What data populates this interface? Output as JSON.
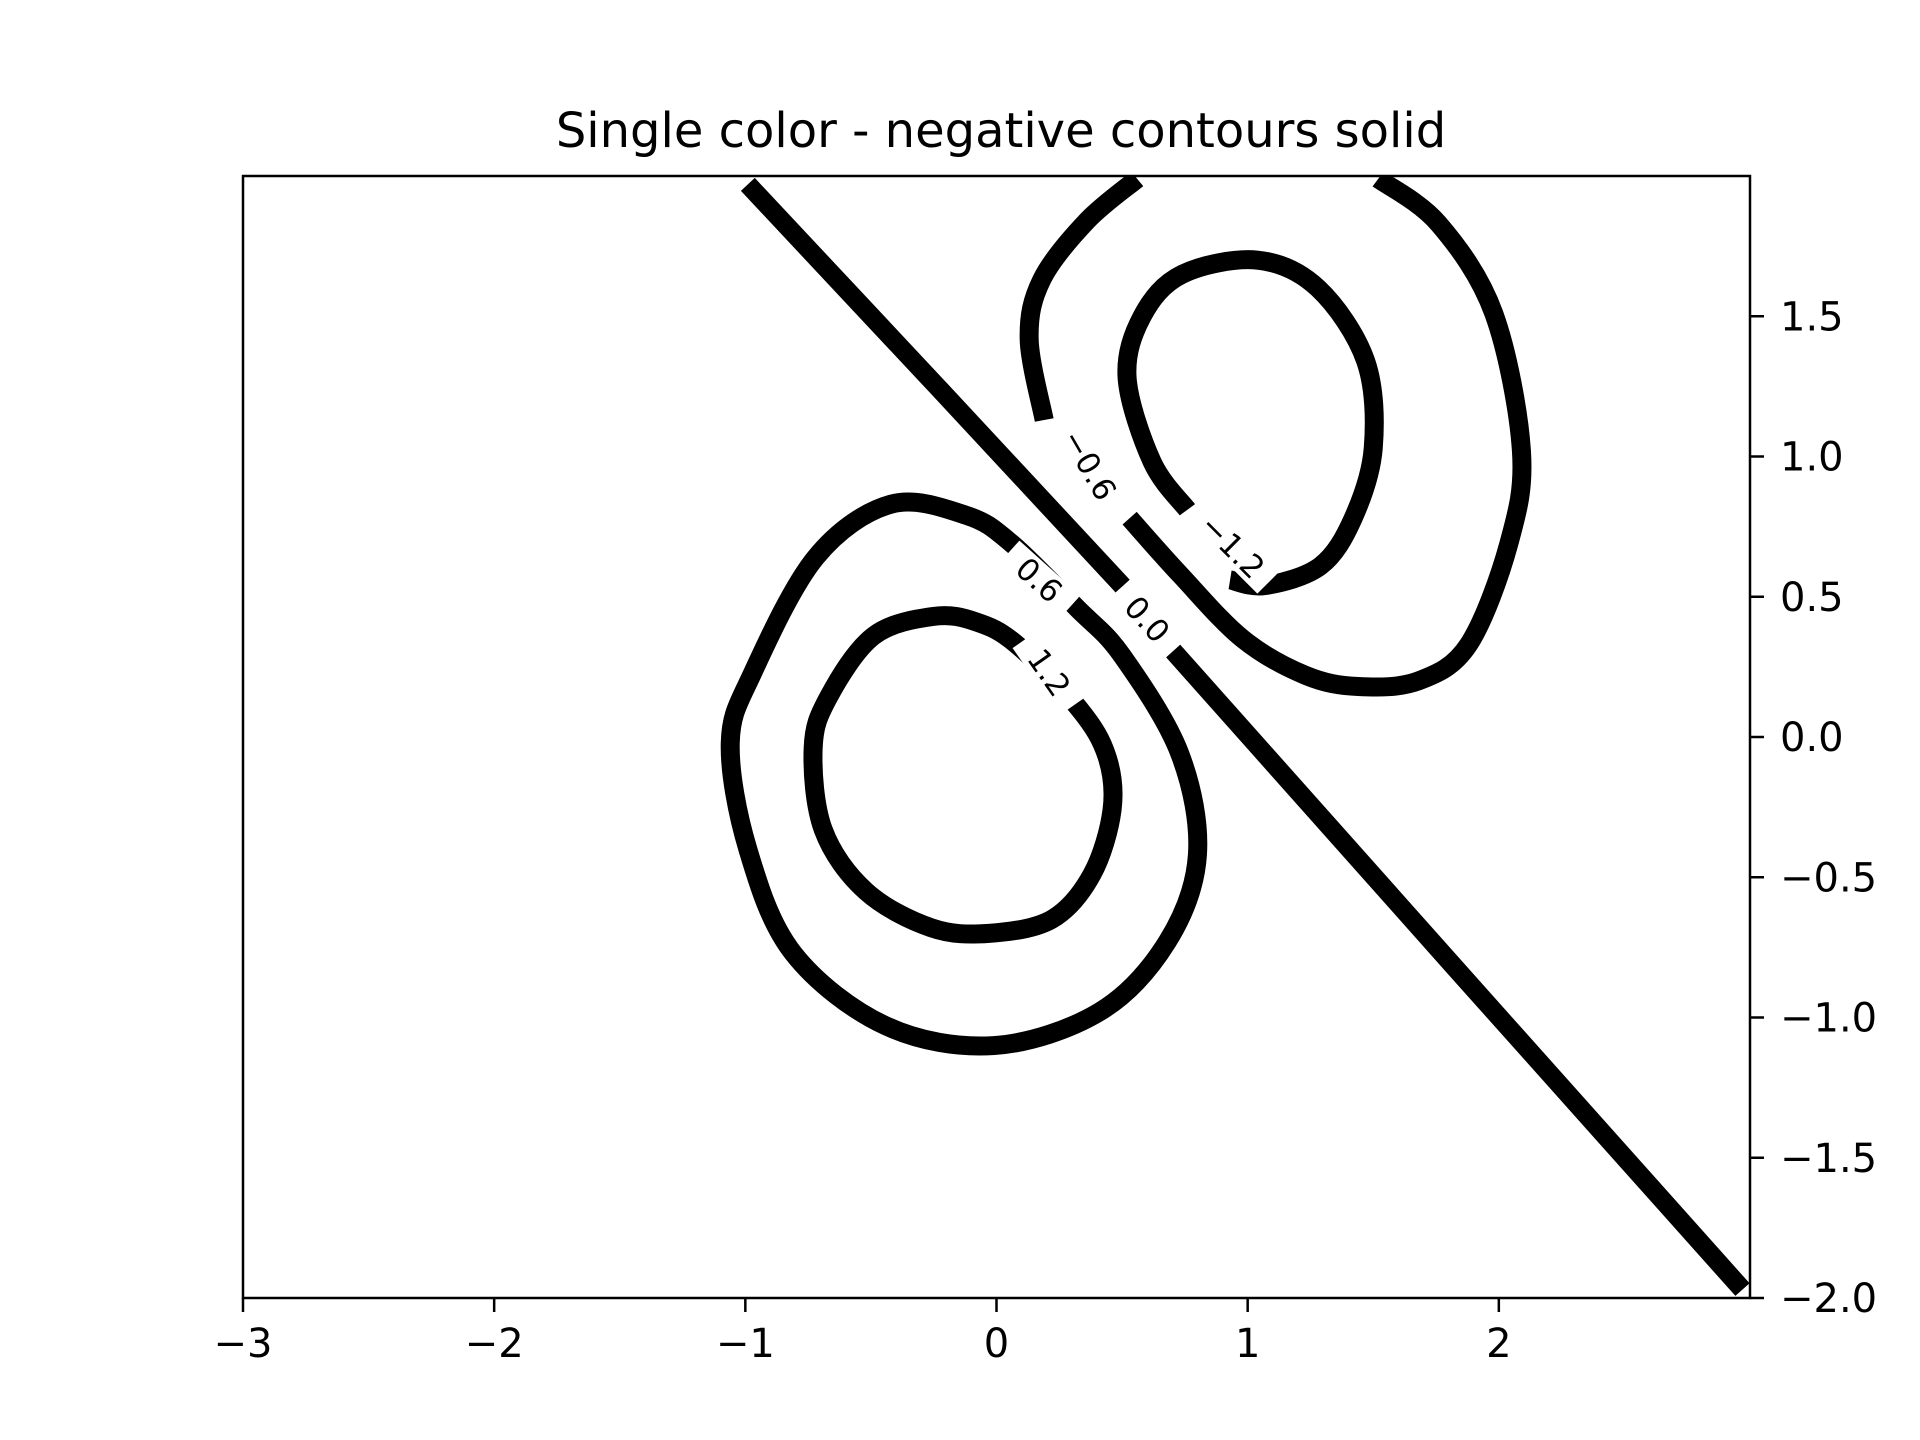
{
  "chart_data": {
    "type": "contour",
    "title": "Single color - negative contours solid",
    "xlabel": "",
    "ylabel": "",
    "xlim": [
      -3,
      3
    ],
    "ylim": [
      -2,
      2
    ],
    "xticks": [
      -3,
      -2,
      -1,
      0,
      1,
      2
    ],
    "xtick_labels": [
      "−3",
      "−2",
      "−1",
      "0",
      "1",
      "2"
    ],
    "yticks": [
      -2.0,
      -1.5,
      -1.0,
      -0.5,
      0.0,
      0.5,
      1.0,
      1.5
    ],
    "ytick_labels": [
      "−2.0",
      "−1.5",
      "−1.0",
      "−0.5",
      "0.0",
      "0.5",
      "1.0",
      "1.5"
    ],
    "y_axis_side": "right",
    "grid": false,
    "line_color": "#000000",
    "negative_linestyle": "solid",
    "levels": [
      -1.2,
      -0.6,
      0.0,
      0.6,
      1.2
    ],
    "level_labels": [
      {
        "level": -1.2,
        "text": "−1.2",
        "x": 0.94,
        "y": 0.68,
        "angle": 45
      },
      {
        "level": -0.6,
        "text": "−0.6",
        "x": 0.37,
        "y": 0.97,
        "angle": 60
      },
      {
        "level": 0.0,
        "text": "0.0",
        "x": 0.6,
        "y": 0.42,
        "angle": 48
      },
      {
        "level": 0.6,
        "text": "0.6",
        "x": 0.17,
        "y": 0.56,
        "angle": 42
      },
      {
        "level": 1.2,
        "text": "1.2",
        "x": 0.21,
        "y": 0.23,
        "angle": 55
      }
    ],
    "contours": [
      {
        "level": 0.0,
        "closed": false,
        "points": [
          [
            -0.99,
            1.97
          ],
          [
            0.49,
            0.55
          ],
          [
            0.71,
            0.3
          ],
          [
            2.97,
            -1.97
          ]
        ]
      },
      {
        "level": 0.6,
        "closed": true,
        "points": [
          [
            0.06,
            0.69
          ],
          [
            -0.12,
            0.79
          ],
          [
            -0.42,
            0.83
          ],
          [
            -0.72,
            0.64
          ],
          [
            -0.97,
            0.23
          ],
          [
            -1.06,
            -0.02
          ],
          [
            -0.99,
            -0.4
          ],
          [
            -0.81,
            -0.77
          ],
          [
            -0.44,
            -1.03
          ],
          [
            -0.01,
            -1.1
          ],
          [
            0.41,
            -0.98
          ],
          [
            0.68,
            -0.73
          ],
          [
            0.8,
            -0.42
          ],
          [
            0.73,
            -0.06
          ],
          [
            0.5,
            0.29
          ],
          [
            0.32,
            0.46
          ]
        ]
      },
      {
        "level": 1.2,
        "closed": true,
        "points": [
          [
            0.08,
            0.33
          ],
          [
            -0.08,
            0.41
          ],
          [
            -0.25,
            0.43
          ],
          [
            -0.49,
            0.36
          ],
          [
            -0.67,
            0.14
          ],
          [
            -0.73,
            -0.04
          ],
          [
            -0.69,
            -0.33
          ],
          [
            -0.52,
            -0.55
          ],
          [
            -0.26,
            -0.68
          ],
          [
            -0.03,
            -0.7
          ],
          [
            0.22,
            -0.65
          ],
          [
            0.38,
            -0.49
          ],
          [
            0.46,
            -0.26
          ],
          [
            0.44,
            -0.07
          ],
          [
            0.33,
            0.1
          ]
        ]
      },
      {
        "level": -0.6,
        "closed": false,
        "points": [
          [
            0.19,
            1.13
          ],
          [
            0.13,
            1.42
          ],
          [
            0.18,
            1.63
          ],
          [
            0.36,
            1.84
          ],
          [
            0.56,
            1.99
          ]
        ]
      },
      {
        "level": -0.6,
        "closed": false,
        "points": [
          [
            1.52,
            1.99
          ],
          [
            1.76,
            1.83
          ],
          [
            1.98,
            1.51
          ],
          [
            2.09,
            1.02
          ],
          [
            2.04,
            0.69
          ],
          [
            1.88,
            0.33
          ],
          [
            1.68,
            0.2
          ],
          [
            1.44,
            0.18
          ],
          [
            1.23,
            0.22
          ],
          [
            0.98,
            0.35
          ],
          [
            0.73,
            0.58
          ],
          [
            0.53,
            0.78
          ]
        ]
      },
      {
        "level": -1.2,
        "closed": false,
        "points": [
          [
            0.76,
            0.81
          ],
          [
            0.62,
            0.98
          ],
          [
            0.52,
            1.28
          ],
          [
            0.58,
            1.5
          ],
          [
            0.74,
            1.65
          ],
          [
            1.04,
            1.7
          ],
          [
            1.28,
            1.6
          ],
          [
            1.47,
            1.34
          ],
          [
            1.5,
            1.03
          ],
          [
            1.42,
            0.78
          ],
          [
            1.29,
            0.61
          ],
          [
            1.07,
            0.54
          ],
          [
            0.93,
            0.56
          ]
        ]
      }
    ]
  }
}
